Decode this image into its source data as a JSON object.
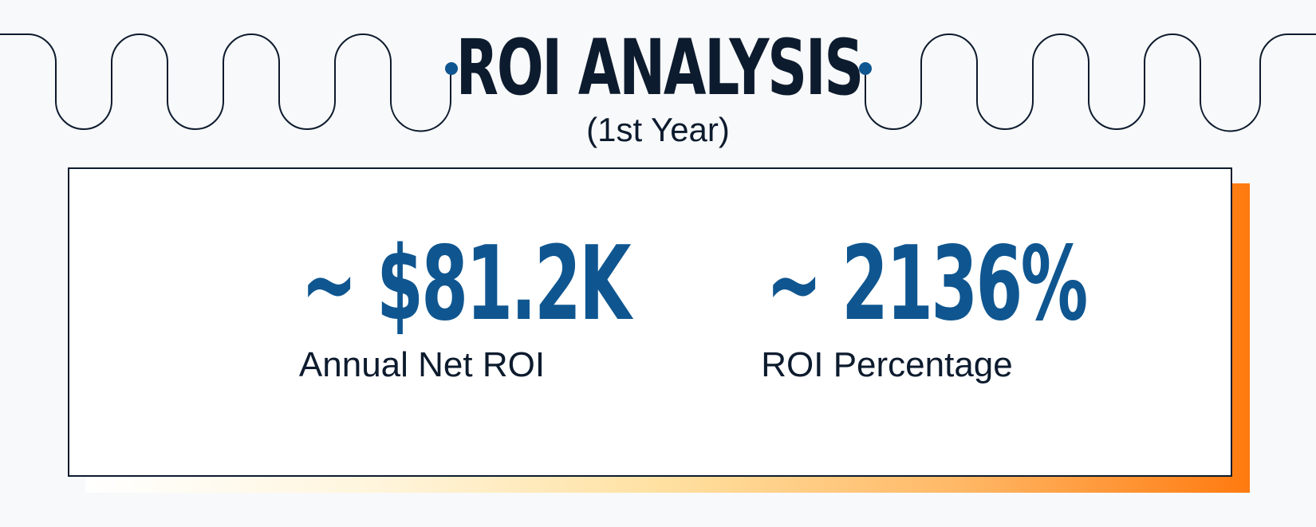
{
  "header": {
    "title": "ROI ANALYSIS",
    "subtitle": "(1st Year)"
  },
  "metrics": [
    {
      "value": "~ $81.2K",
      "label": "Annual Net ROI"
    },
    {
      "value": "~ 2136%",
      "label": "ROI Percentage"
    }
  ],
  "colors": {
    "title": "#0d1b2e",
    "metric_value": "#0f5690",
    "accent_orange": "#ff7a0f",
    "background": "#f8f9fa"
  }
}
